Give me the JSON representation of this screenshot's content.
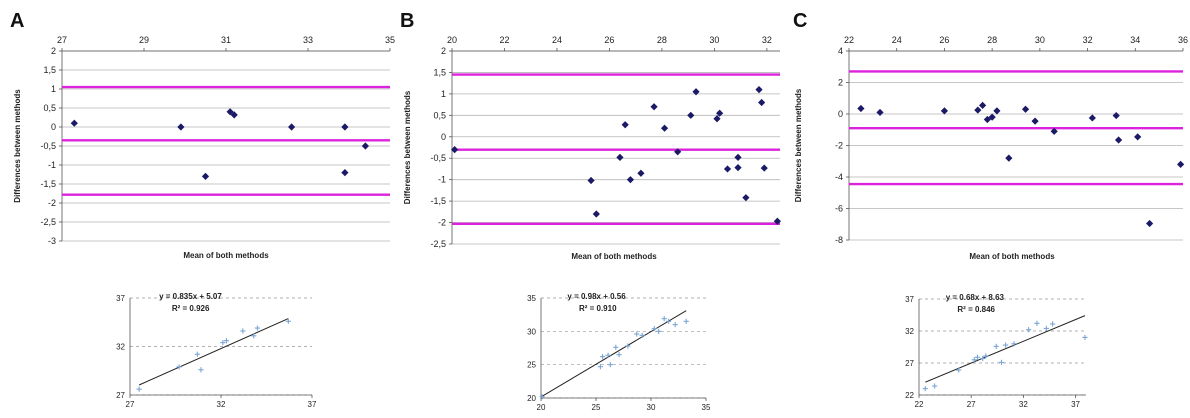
{
  "panels": [
    {
      "letter": "A"
    },
    {
      "letter": "B"
    },
    {
      "letter": "C"
    }
  ],
  "colors": {
    "point": "#1a1a66",
    "limit_line": "#dd22dd",
    "grid": "#b5b5b5",
    "scatter_point": "#7aa6d6",
    "regression_line": "#222222",
    "dashed_grid": "#999999"
  },
  "chart_data": [
    {
      "type": "scatter",
      "panel": "A",
      "xlabel": "Mean of both methods",
      "ylabel": "Differences between methods",
      "xlim": [
        27,
        35
      ],
      "ylim": [
        -3,
        2
      ],
      "x_ticks": [
        27,
        29,
        31,
        33,
        35
      ],
      "y_ticks": [
        2,
        1.5,
        1,
        0.5,
        0,
        -0.5,
        -1,
        -1.5,
        -2,
        -2.5,
        -3
      ],
      "y_tick_labels": [
        "2",
        "1,5",
        "1",
        "0,5",
        "0",
        "-0,5",
        "-1",
        "-1,5",
        "-2",
        "-2,5",
        "-3"
      ],
      "x_axis_position": "top",
      "grid": true,
      "limit_lines": [
        1.05,
        -0.35,
        -1.78
      ],
      "points": [
        {
          "x": 27.3,
          "y": 0.1
        },
        {
          "x": 29.9,
          "y": 0.0
        },
        {
          "x": 30.5,
          "y": -1.3
        },
        {
          "x": 31.1,
          "y": 0.4
        },
        {
          "x": 31.2,
          "y": 0.32
        },
        {
          "x": 32.6,
          "y": 0.0
        },
        {
          "x": 33.9,
          "y": 0.0
        },
        {
          "x": 33.9,
          "y": -1.2
        },
        {
          "x": 34.4,
          "y": -0.5
        }
      ]
    },
    {
      "type": "scatter",
      "panel": "B",
      "xlabel": "Mean of both methods",
      "ylabel": "Differences between methods",
      "xlim": [
        20,
        32.5
      ],
      "ylim": [
        -2.5,
        2
      ],
      "x_ticks": [
        20,
        22,
        24,
        26,
        28,
        30,
        32
      ],
      "y_ticks": [
        2,
        1.5,
        1,
        0.5,
        0,
        -0.5,
        -1,
        -1.5,
        -2,
        -2.5
      ],
      "y_tick_labels": [
        "2",
        "1,5",
        "1",
        "0,5",
        "0",
        "-0,5",
        "-1",
        "-1,5",
        "-2",
        "-2,5"
      ],
      "x_axis_position": "top",
      "grid": true,
      "limit_lines": [
        1.45,
        -0.3,
        -2.03
      ],
      "points": [
        {
          "x": 20.1,
          "y": -0.3
        },
        {
          "x": 25.3,
          "y": -1.02
        },
        {
          "x": 25.5,
          "y": -1.8
        },
        {
          "x": 26.4,
          "y": -0.48
        },
        {
          "x": 26.6,
          "y": 0.28
        },
        {
          "x": 26.8,
          "y": -1.0
        },
        {
          "x": 27.2,
          "y": -0.85
        },
        {
          "x": 27.7,
          "y": 0.7
        },
        {
          "x": 28.1,
          "y": 0.2
        },
        {
          "x": 28.6,
          "y": -0.35
        },
        {
          "x": 29.1,
          "y": 0.5
        },
        {
          "x": 29.3,
          "y": 1.05
        },
        {
          "x": 30.1,
          "y": 0.42
        },
        {
          "x": 30.2,
          "y": 0.55
        },
        {
          "x": 30.5,
          "y": -0.75
        },
        {
          "x": 30.9,
          "y": -0.48
        },
        {
          "x": 30.9,
          "y": -0.72
        },
        {
          "x": 31.2,
          "y": -1.42
        },
        {
          "x": 31.7,
          "y": 1.1
        },
        {
          "x": 31.8,
          "y": 0.8
        },
        {
          "x": 31.9,
          "y": -0.73
        },
        {
          "x": 32.4,
          "y": -1.97
        }
      ]
    },
    {
      "type": "scatter",
      "panel": "C",
      "xlabel": "Mean of both methods",
      "ylabel": "Differences between methods",
      "xlim": [
        22,
        36
      ],
      "ylim": [
        -8,
        4
      ],
      "x_ticks": [
        22,
        24,
        26,
        28,
        30,
        32,
        34,
        36
      ],
      "y_ticks": [
        4,
        2,
        0,
        -2,
        -4,
        -6,
        -8
      ],
      "y_tick_labels": [
        "4",
        "2",
        "0",
        "-2",
        "-4",
        "-6",
        "-8"
      ],
      "x_axis_position": "top",
      "grid": true,
      "limit_lines": [
        2.7,
        -0.9,
        -4.45
      ],
      "points": [
        {
          "x": 22.5,
          "y": 0.35
        },
        {
          "x": 23.3,
          "y": 0.1
        },
        {
          "x": 26.0,
          "y": 0.2
        },
        {
          "x": 27.4,
          "y": 0.25
        },
        {
          "x": 27.6,
          "y": 0.55
        },
        {
          "x": 27.8,
          "y": -0.35
        },
        {
          "x": 28.0,
          "y": -0.2
        },
        {
          "x": 28.2,
          "y": 0.2
        },
        {
          "x": 28.7,
          "y": -2.8
        },
        {
          "x": 29.4,
          "y": 0.3
        },
        {
          "x": 29.8,
          "y": -0.45
        },
        {
          "x": 30.6,
          "y": -1.1
        },
        {
          "x": 32.2,
          "y": -0.25
        },
        {
          "x": 33.2,
          "y": -0.1
        },
        {
          "x": 33.3,
          "y": -1.65
        },
        {
          "x": 34.1,
          "y": -1.45
        },
        {
          "x": 34.6,
          "y": -6.95
        },
        {
          "x": 35.9,
          "y": -3.2
        }
      ]
    },
    {
      "type": "scatter",
      "panel": "A-regression",
      "equation": "y = 0.835x + 5.07",
      "r2": "R² = 0.926",
      "xlim": [
        27,
        37
      ],
      "ylim": [
        27,
        37
      ],
      "x_ticks": [
        27,
        32,
        37
      ],
      "y_ticks": [
        27,
        32,
        37
      ],
      "fit": {
        "slope": 0.835,
        "intercept": 5.07
      },
      "points": [
        {
          "x": 27.5,
          "y": 27.6
        },
        {
          "x": 29.7,
          "y": 29.9
        },
        {
          "x": 30.7,
          "y": 31.2
        },
        {
          "x": 30.9,
          "y": 29.6
        },
        {
          "x": 32.1,
          "y": 32.4
        },
        {
          "x": 32.3,
          "y": 32.6
        },
        {
          "x": 33.2,
          "y": 33.6
        },
        {
          "x": 33.8,
          "y": 33.1
        },
        {
          "x": 34.0,
          "y": 33.9
        },
        {
          "x": 35.7,
          "y": 34.6
        }
      ]
    },
    {
      "type": "scatter",
      "panel": "B-regression",
      "equation": "y = 0.98x + 0.56",
      "r2": "R² = 0.910",
      "xlim": [
        20,
        35
      ],
      "ylim": [
        20,
        35
      ],
      "x_ticks": [
        20,
        25,
        30,
        35
      ],
      "y_ticks": [
        20,
        25,
        30,
        35
      ],
      "fit": {
        "slope": 0.98,
        "intercept": 0.56
      },
      "points": [
        {
          "x": 20.1,
          "y": 20.2
        },
        {
          "x": 25.4,
          "y": 24.7
        },
        {
          "x": 25.6,
          "y": 26.2
        },
        {
          "x": 26.1,
          "y": 26.4
        },
        {
          "x": 26.3,
          "y": 25.0
        },
        {
          "x": 26.8,
          "y": 27.6
        },
        {
          "x": 27.1,
          "y": 26.5
        },
        {
          "x": 27.9,
          "y": 27.8
        },
        {
          "x": 28.7,
          "y": 29.6
        },
        {
          "x": 29.2,
          "y": 29.4
        },
        {
          "x": 30.3,
          "y": 30.4
        },
        {
          "x": 30.7,
          "y": 30.0
        },
        {
          "x": 31.2,
          "y": 31.9
        },
        {
          "x": 31.6,
          "y": 31.5
        },
        {
          "x": 32.2,
          "y": 31.0
        },
        {
          "x": 33.2,
          "y": 31.5
        }
      ]
    },
    {
      "type": "scatter",
      "panel": "C-regression",
      "equation": "y = 0.68x + 8.63",
      "r2": "R² = 0.846",
      "xlim": [
        22,
        38
      ],
      "ylim": [
        22,
        37
      ],
      "x_ticks": [
        22,
        27,
        32,
        37
      ],
      "y_ticks": [
        22,
        27,
        32,
        37
      ],
      "fit": {
        "slope": 0.68,
        "intercept": 8.63
      },
      "points": [
        {
          "x": 22.6,
          "y": 23.0
        },
        {
          "x": 23.5,
          "y": 23.4
        },
        {
          "x": 25.8,
          "y": 25.9
        },
        {
          "x": 27.3,
          "y": 27.5
        },
        {
          "x": 27.6,
          "y": 27.9
        },
        {
          "x": 28.1,
          "y": 27.7
        },
        {
          "x": 28.4,
          "y": 28.1
        },
        {
          "x": 29.4,
          "y": 29.6
        },
        {
          "x": 29.9,
          "y": 27.1
        },
        {
          "x": 30.3,
          "y": 29.8
        },
        {
          "x": 31.1,
          "y": 30.0
        },
        {
          "x": 32.5,
          "y": 32.2
        },
        {
          "x": 33.3,
          "y": 33.2
        },
        {
          "x": 34.2,
          "y": 32.4
        },
        {
          "x": 34.8,
          "y": 33.1
        },
        {
          "x": 37.9,
          "y": 31.0
        }
      ]
    }
  ]
}
